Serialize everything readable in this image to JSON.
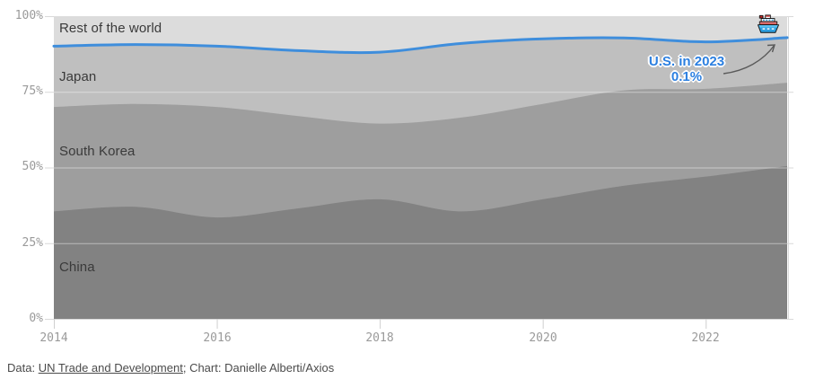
{
  "chart": {
    "y_ticks": [
      "100%",
      "75%",
      "50%",
      "25%",
      "0%"
    ],
    "x_ticks": [
      "2014",
      "2016",
      "2018",
      "2020",
      "2022"
    ],
    "band_labels": {
      "rest_of_world": "Rest of the world",
      "japan": "Japan",
      "south_korea": "South Korea",
      "china": "China"
    },
    "annotation": {
      "line1": "U.S. in 2023",
      "line2": "0.1%"
    },
    "colors": {
      "rest_of_world": "#dcdcdc",
      "japan": "#bfbfbf",
      "south_korea": "#9e9e9e",
      "china": "#828282",
      "us_line": "#3f8edc",
      "grid": "#d9d9d9",
      "grid_overlay": "rgba(255,255,255,0.45)",
      "axis_text": "#9a9a9a",
      "annotation_text": "#2b7fe0",
      "arrow": "#5a5a5a"
    }
  },
  "chart_data": {
    "type": "area",
    "stacked": true,
    "title": "",
    "xlabel": "",
    "ylabel": "",
    "ylim": [
      0,
      100
    ],
    "y_tick_values": [
      0,
      25,
      50,
      75,
      100
    ],
    "x_tick_values": [
      2014,
      2016,
      2018,
      2020,
      2022
    ],
    "x": [
      2014,
      2015,
      2016,
      2017,
      2018,
      2019,
      2020,
      2021,
      2022,
      2023
    ],
    "series": [
      {
        "name": "China",
        "color": "#828282",
        "values": [
          35.5,
          37.0,
          33.5,
          36.5,
          39.5,
          35.5,
          39.5,
          44.0,
          47.0,
          50.5
        ]
      },
      {
        "name": "South Korea",
        "color": "#9e9e9e",
        "values": [
          34.5,
          34.0,
          36.5,
          30.5,
          25.0,
          31.0,
          31.5,
          31.5,
          29.0,
          27.5
        ]
      },
      {
        "name": "Japan",
        "color": "#bfbfbf",
        "values": [
          20.0,
          19.5,
          20.0,
          21.5,
          23.5,
          24.4,
          21.4,
          17.2,
          15.4,
          14.8
        ]
      },
      {
        "name": "U.S.",
        "color": "#3f8edc",
        "values": [
          0.1,
          0.1,
          0.1,
          0.1,
          0.1,
          0.1,
          0.1,
          0.1,
          0.1,
          0.1
        ]
      },
      {
        "name": "Rest of the world",
        "color": "#dcdcdc",
        "values": [
          9.9,
          9.4,
          9.9,
          11.4,
          11.9,
          9.0,
          7.5,
          7.2,
          8.5,
          7.1
        ]
      }
    ],
    "legend": "inline-band-labels",
    "grid": true,
    "annotation": "U.S. in 2023 0.1%"
  },
  "footer": {
    "data_prefix": "Data: ",
    "source_link": "UN Trade and Development",
    "credit_rest": "; Chart: Danielle Alberti/Axios"
  }
}
